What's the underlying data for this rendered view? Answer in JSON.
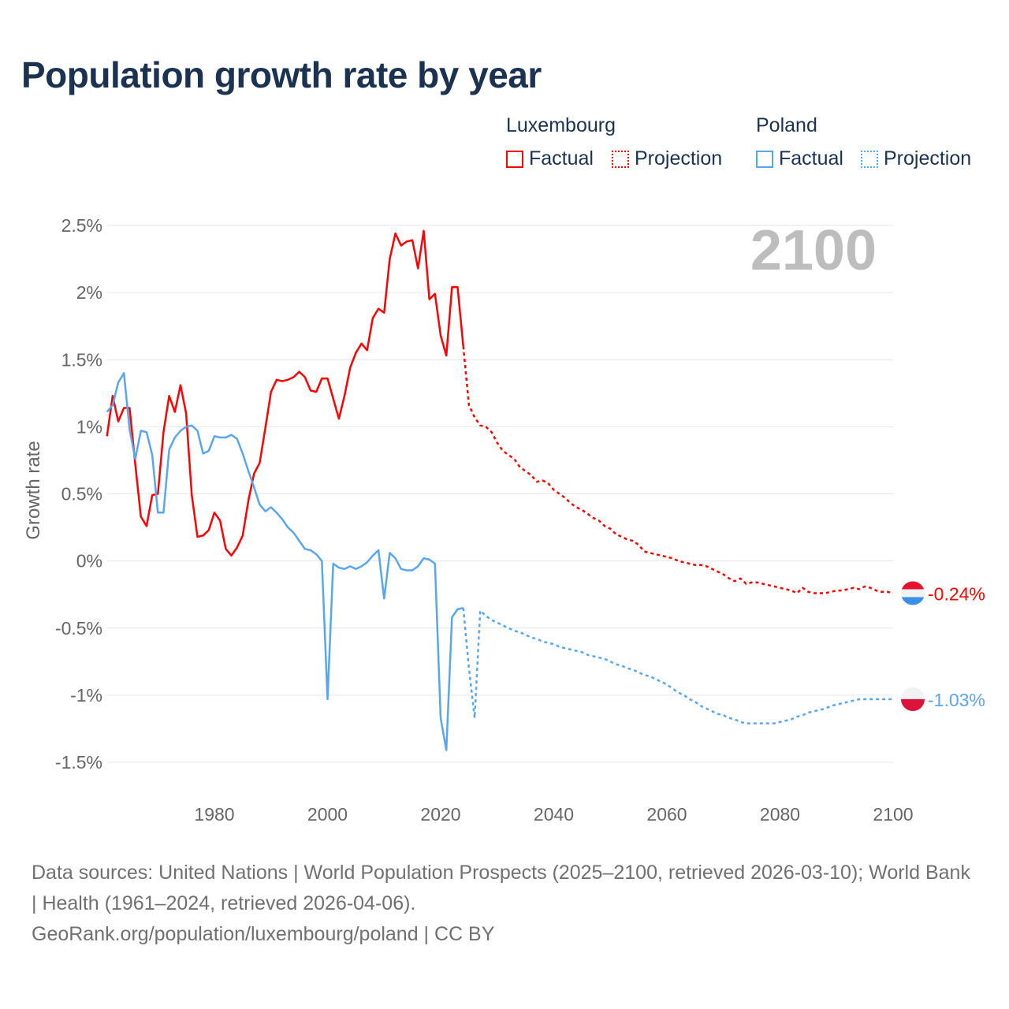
{
  "title": "Population growth rate by year",
  "legend": {
    "luxembourg": {
      "name": "Luxembourg",
      "factual": "Factual",
      "projection": "Projection",
      "color": "#ff0000"
    },
    "poland": {
      "name": "Poland",
      "factual": "Factual",
      "projection": "Projection",
      "color": "#5aa6ee"
    }
  },
  "year_marker": "2100",
  "footer": {
    "sources": "Data sources: United Nations | World Population Prospects (2025–2100, retrieved 2026-03-10); World Bank | Health (1961–2024, retrieved 2026-04-06).",
    "credit": "GeoRank.org/population/luxembourg/poland | CC BY"
  },
  "chart_data": {
    "type": "line",
    "title": "Population growth rate by year",
    "xlabel": "",
    "ylabel": "Growth rate",
    "xlim": [
      1961,
      2100
    ],
    "ylim": [
      -1.5,
      2.5
    ],
    "x_ticks": [
      1980,
      2000,
      2020,
      2040,
      2060,
      2080,
      2100
    ],
    "y_ticks": [
      2.5,
      2,
      1.5,
      1,
      0.5,
      0,
      -0.5,
      -1,
      -1.5
    ],
    "y_tick_labels": [
      "2.5%",
      "2%",
      "1.5%",
      "1%",
      "0.5%",
      "0%",
      "-0.5%",
      "-1%",
      "-1.5%"
    ],
    "grid": true,
    "legend_position": "top-right",
    "series": [
      {
        "name": "Luxembourg Factual",
        "country": "luxembourg",
        "style": "solid",
        "x_start": 1961,
        "values": [
          0.93,
          1.23,
          1.04,
          1.14,
          1.14,
          0.72,
          0.33,
          0.26,
          0.49,
          0.5,
          0.96,
          1.23,
          1.11,
          1.31,
          1.1,
          0.49,
          0.18,
          0.19,
          0.23,
          0.36,
          0.3,
          0.09,
          0.04,
          0.1,
          0.19,
          0.45,
          0.65,
          0.73,
          0.99,
          1.26,
          1.35,
          1.34,
          1.35,
          1.37,
          1.41,
          1.37,
          1.27,
          1.26,
          1.36,
          1.36,
          1.21,
          1.06,
          1.23,
          1.44,
          1.55,
          1.62,
          1.57,
          1.81,
          1.88,
          1.85,
          2.25,
          2.44,
          2.35,
          2.38,
          2.39,
          2.18,
          2.46,
          1.95,
          1.99,
          1.68,
          1.53,
          2.04,
          2.04,
          1.6
        ]
      },
      {
        "name": "Luxembourg Projection",
        "country": "luxembourg",
        "style": "dotted",
        "x_start": 2024,
        "values": [
          1.6,
          1.16,
          1.07,
          1.01,
          1.0,
          0.96,
          0.88,
          0.82,
          0.79,
          0.76,
          0.7,
          0.67,
          0.64,
          0.59,
          0.6,
          0.58,
          0.53,
          0.5,
          0.47,
          0.43,
          0.4,
          0.38,
          0.35,
          0.32,
          0.3,
          0.26,
          0.24,
          0.2,
          0.18,
          0.16,
          0.15,
          0.12,
          0.07,
          0.06,
          0.05,
          0.04,
          0.03,
          0.02,
          0.0,
          -0.01,
          -0.02,
          -0.03,
          -0.03,
          -0.04,
          -0.06,
          -0.08,
          -0.1,
          -0.13,
          -0.15,
          -0.13,
          -0.17,
          -0.16,
          -0.16,
          -0.17,
          -0.18,
          -0.19,
          -0.2,
          -0.21,
          -0.22,
          -0.24,
          -0.2,
          -0.23,
          -0.24,
          -0.24,
          -0.24,
          -0.23,
          -0.22,
          -0.22,
          -0.21,
          -0.2,
          -0.21,
          -0.19,
          -0.2,
          -0.22,
          -0.23,
          -0.23,
          -0.24
        ]
      },
      {
        "name": "Poland Factual",
        "country": "poland",
        "style": "solid",
        "x_start": 1961,
        "values": [
          1.11,
          1.16,
          1.33,
          1.4,
          0.98,
          0.76,
          0.97,
          0.96,
          0.79,
          0.36,
          0.36,
          0.83,
          0.92,
          0.97,
          1.0,
          1.01,
          0.97,
          0.8,
          0.82,
          0.93,
          0.92,
          0.92,
          0.94,
          0.91,
          0.8,
          0.67,
          0.55,
          0.42,
          0.37,
          0.4,
          0.36,
          0.31,
          0.25,
          0.21,
          0.15,
          0.09,
          0.08,
          0.05,
          0.0,
          -1.03,
          -0.02,
          -0.05,
          -0.06,
          -0.04,
          -0.06,
          -0.04,
          -0.01,
          0.04,
          0.08,
          -0.28,
          0.06,
          0.02,
          -0.06,
          -0.07,
          -0.07,
          -0.04,
          0.02,
          0.01,
          -0.02,
          -1.17,
          -1.41,
          -0.42,
          -0.36,
          -0.35
        ]
      },
      {
        "name": "Poland Projection",
        "country": "poland",
        "style": "dotted",
        "x_start": 2024,
        "values": [
          -0.35,
          -0.8,
          -1.17,
          -0.37,
          -0.41,
          -0.44,
          -0.46,
          -0.48,
          -0.5,
          -0.52,
          -0.53,
          -0.55,
          -0.57,
          -0.58,
          -0.6,
          -0.61,
          -0.62,
          -0.64,
          -0.65,
          -0.66,
          -0.67,
          -0.68,
          -0.7,
          -0.71,
          -0.72,
          -0.73,
          -0.75,
          -0.77,
          -0.78,
          -0.8,
          -0.81,
          -0.83,
          -0.85,
          -0.86,
          -0.88,
          -0.9,
          -0.92,
          -0.95,
          -0.98,
          -1.0,
          -1.03,
          -1.05,
          -1.08,
          -1.1,
          -1.12,
          -1.14,
          -1.15,
          -1.17,
          -1.18,
          -1.2,
          -1.21,
          -1.21,
          -1.21,
          -1.21,
          -1.21,
          -1.21,
          -1.2,
          -1.19,
          -1.18,
          -1.16,
          -1.15,
          -1.13,
          -1.12,
          -1.11,
          -1.1,
          -1.08,
          -1.07,
          -1.06,
          -1.05,
          -1.04,
          -1.03,
          -1.03,
          -1.03,
          -1.03,
          -1.03,
          -1.03,
          -1.03
        ]
      }
    ],
    "end_labels": [
      {
        "country": "luxembourg",
        "label": "-0.24%",
        "value": -0.24
      },
      {
        "country": "poland",
        "label": "-1.03%",
        "value": -1.03
      }
    ]
  }
}
